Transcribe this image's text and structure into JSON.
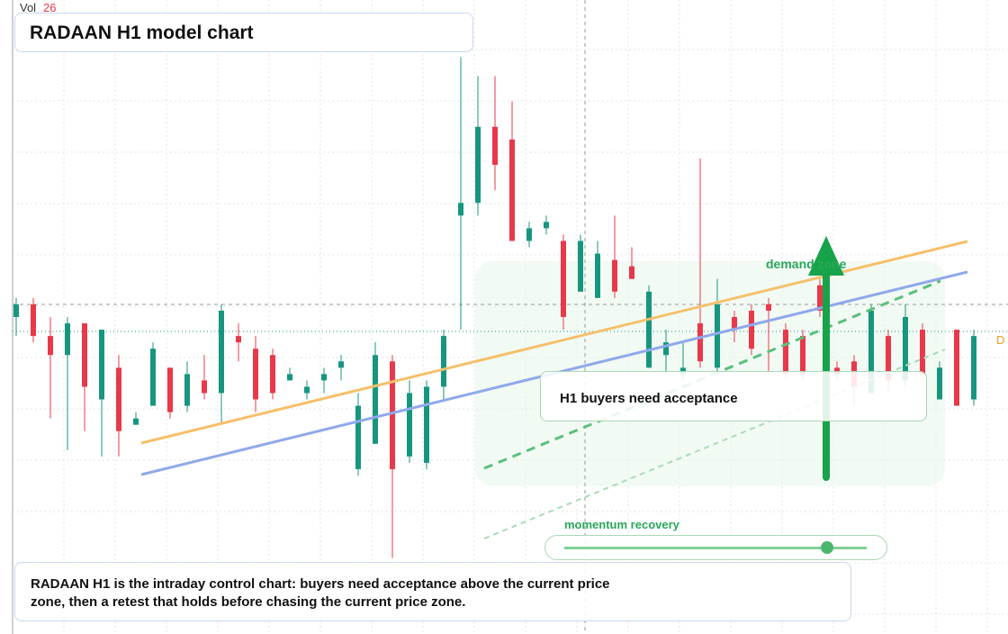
{
  "chart_data": {
    "type": "candlestick",
    "title": "RADAAN H1 model chart",
    "volume_label": "Vol",
    "volume_value": 26,
    "price_tag": "D",
    "annotations": [
      "demand zone",
      "H1 buyers need acceptance",
      "momentum recovery"
    ],
    "description": "RADAAN H1 is the intraday control chart: buyers need acceptance above the current price zone, then a retest that holds before chasing the current price zone.",
    "up_color": "#17967f",
    "down_color": "#e8394a",
    "ylim": [
      0,
      100
    ],
    "open": [
      50,
      52,
      47,
      44,
      49,
      37,
      42,
      33,
      36,
      42,
      36,
      40,
      38,
      47,
      45,
      44,
      40,
      38,
      40,
      42,
      26,
      30,
      43,
      28,
      27,
      39,
      66,
      68,
      80,
      78,
      62,
      64,
      62,
      54,
      53,
      59,
      58,
      42,
      44,
      41,
      49,
      42,
      50,
      51,
      52,
      48,
      47,
      55,
      42,
      43,
      38,
      47,
      40,
      48,
      37,
      48,
      37
    ],
    "high": [
      53,
      53,
      50,
      50,
      49,
      48,
      44,
      35,
      46,
      42,
      43,
      44,
      52,
      49,
      47,
      45,
      42,
      40,
      42,
      44,
      38,
      46,
      44,
      40,
      40,
      48,
      91,
      88,
      88,
      84,
      65,
      66,
      63,
      63,
      62,
      66,
      61,
      55,
      48,
      46,
      75,
      56,
      51,
      52,
      53,
      49,
      48,
      56,
      43,
      44,
      52,
      48,
      52,
      49,
      43,
      48,
      48
    ],
    "low": [
      47,
      46,
      34,
      29,
      32,
      28,
      28,
      33,
      36,
      34,
      35,
      37,
      33,
      43,
      35,
      37,
      40,
      37,
      38,
      40,
      25,
      30,
      12,
      27,
      26,
      37,
      48,
      66,
      70,
      62,
      61,
      63,
      48,
      54,
      53,
      53,
      56,
      42,
      41,
      40,
      42,
      41,
      46,
      44,
      41,
      40,
      40,
      50,
      40,
      36,
      38,
      38,
      39,
      40,
      37,
      36,
      36
    ],
    "close": [
      52,
      47,
      44,
      49,
      39,
      48,
      32,
      34,
      45,
      35,
      41,
      38,
      51,
      46,
      37,
      38,
      41,
      39,
      41,
      43,
      36,
      44,
      26,
      38,
      39,
      47,
      68,
      80,
      74,
      62,
      64,
      65,
      50,
      62,
      60,
      54,
      56,
      54,
      46,
      42,
      43,
      52,
      48,
      45,
      51,
      41,
      41,
      51,
      41,
      39,
      51,
      40,
      50,
      41,
      42,
      36,
      47
    ]
  }
}
